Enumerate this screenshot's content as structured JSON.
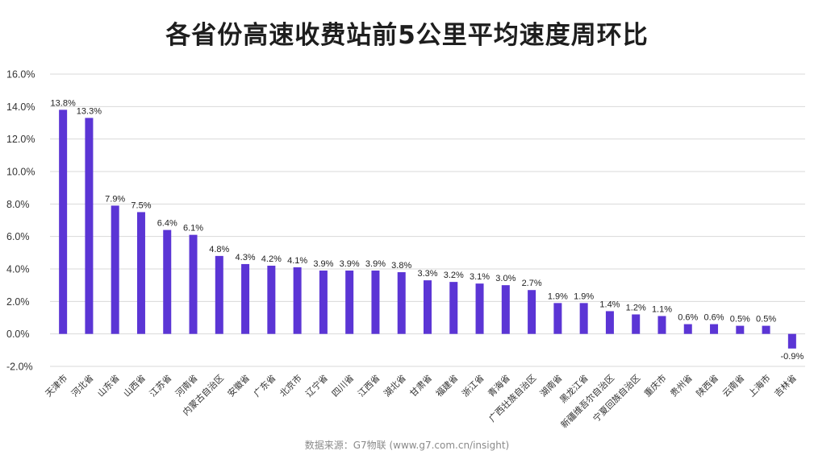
{
  "chart_data": {
    "type": "bar",
    "title": "各省份高速收费站前5公里平均速度周环比",
    "xlabel": "",
    "ylabel": "",
    "ylim": [
      -2.0,
      16.0
    ],
    "yticks": [
      -2.0,
      0.0,
      2.0,
      4.0,
      6.0,
      8.0,
      10.0,
      12.0,
      14.0,
      16.0
    ],
    "ytick_labels": [
      "-2.0%",
      "0.0%",
      "2.0%",
      "4.0%",
      "6.0%",
      "8.0%",
      "10.0%",
      "12.0%",
      "14.0%",
      "16.0%"
    ],
    "grid": true,
    "bar_color": "#5b35d5",
    "categories": [
      "天津市",
      "河北省",
      "山东省",
      "山西省",
      "江苏省",
      "河南省",
      "内蒙古自治区",
      "安徽省",
      "广东省",
      "北京市",
      "辽宁省",
      "四川省",
      "江西省",
      "湖北省",
      "甘肃省",
      "福建省",
      "浙江省",
      "青海省",
      "广西壮族自治区",
      "湖南省",
      "黑龙江省",
      "新疆维吾尔自治区",
      "宁夏回族自治区",
      "重庆市",
      "贵州省",
      "陕西省",
      "云南省",
      "上海市",
      "吉林省"
    ],
    "values": [
      13.8,
      13.3,
      7.9,
      7.5,
      6.4,
      6.1,
      4.8,
      4.3,
      4.2,
      4.1,
      3.9,
      3.9,
      3.9,
      3.8,
      3.3,
      3.2,
      3.1,
      3.0,
      2.7,
      1.9,
      1.9,
      1.4,
      1.2,
      1.1,
      0.6,
      0.6,
      0.5,
      0.5,
      -0.9
    ],
    "data_labels": [
      "13.8%",
      "13.3%",
      "7.9%",
      "7.5%",
      "6.4%",
      "6.1%",
      "4.8%",
      "4.3%",
      "4.2%",
      "4.1%",
      "3.9%",
      "3.9%",
      "3.9%",
      "3.8%",
      "3.3%",
      "3.2%",
      "3.1%",
      "3.0%",
      "2.7%",
      "1.9%",
      "1.9%",
      "1.4%",
      "1.2%",
      "1.1%",
      "0.6%",
      "0.6%",
      "0.5%",
      "0.5%",
      "-0.9%"
    ]
  },
  "source": "数据来源：G7物联 (www.g7.com.cn/insight)"
}
